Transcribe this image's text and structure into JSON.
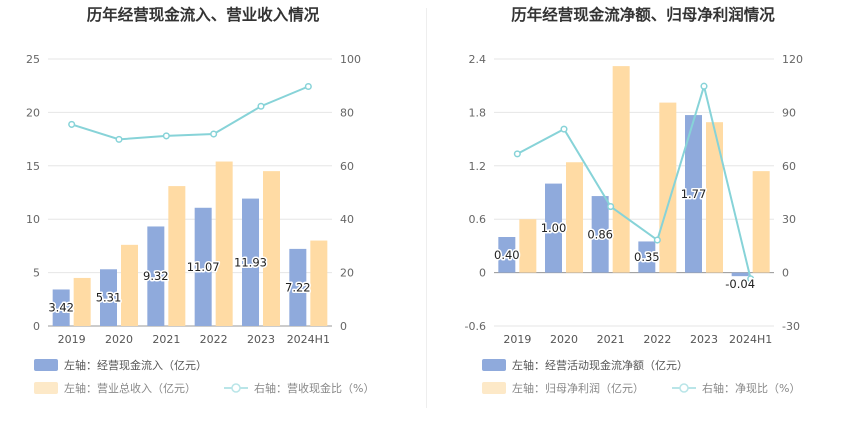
{
  "chart_data": [
    {
      "type": "bar",
      "title": "历年经营现金流入、营业收入情况",
      "categories": [
        "2019",
        "2020",
        "2021",
        "2022",
        "2023",
        "2024H1"
      ],
      "left_axis": {
        "ylim": [
          0,
          25
        ],
        "ticks": [
          "0",
          "5",
          "10",
          "15",
          "20",
          "25"
        ]
      },
      "right_axis": {
        "ylim": [
          0,
          100
        ],
        "ticks": [
          "0",
          "20",
          "40",
          "60",
          "80",
          "100"
        ]
      },
      "series": [
        {
          "name": "左轴：经营现金流入（亿元）",
          "kind": "bar",
          "axis": "left",
          "color": "#8faadc",
          "values": [
            3.42,
            5.31,
            9.32,
            11.07,
            11.93,
            7.22
          ],
          "labels": [
            "3.42",
            "5.31",
            "9.32",
            "11.07",
            "11.93",
            "7.22"
          ]
        },
        {
          "name": "左轴：营业总收入（亿元）",
          "kind": "bar",
          "axis": "left",
          "color": "#ffdba4",
          "values": [
            4.5,
            7.6,
            13.1,
            15.4,
            14.5,
            8.0
          ]
        },
        {
          "name": "右轴：营收现金比（%）",
          "kind": "line",
          "axis": "right",
          "color": "#87d3d8",
          "values": [
            75.5,
            69.9,
            71.2,
            71.9,
            82.3,
            89.7
          ]
        }
      ]
    },
    {
      "type": "bar",
      "title": "历年经营现金流净额、归母净利润情况",
      "categories": [
        "2019",
        "2020",
        "2021",
        "2022",
        "2023",
        "2024H1"
      ],
      "left_axis": {
        "ylim": [
          -0.6,
          2.4
        ],
        "ticks": [
          "-0.6",
          "0",
          "0.6",
          "1.2",
          "1.8",
          "2.4"
        ]
      },
      "right_axis": {
        "ylim": [
          -30,
          120
        ],
        "ticks": [
          "-30",
          "0",
          "30",
          "60",
          "90",
          "120"
        ]
      },
      "series": [
        {
          "name": "左轴：经营活动现金流净额（亿元）",
          "kind": "bar",
          "axis": "left",
          "color": "#8faadc",
          "values": [
            0.4,
            1.0,
            0.86,
            0.35,
            1.77,
            -0.04
          ],
          "labels": [
            "0.40",
            "1.00",
            "0.86",
            "0.35",
            "1.77",
            "-0.04"
          ]
        },
        {
          "name": "左轴：归母净利润（亿元）",
          "kind": "bar",
          "axis": "left",
          "color": "#ffdba4",
          "values": [
            0.6,
            1.24,
            2.32,
            1.91,
            1.69,
            1.14
          ]
        },
        {
          "name": "右轴：净现比（%）",
          "kind": "line",
          "axis": "right",
          "color": "#87d3d8",
          "values": [
            66.7,
            80.6,
            37.1,
            18.3,
            104.7,
            -3.5
          ]
        }
      ]
    }
  ]
}
